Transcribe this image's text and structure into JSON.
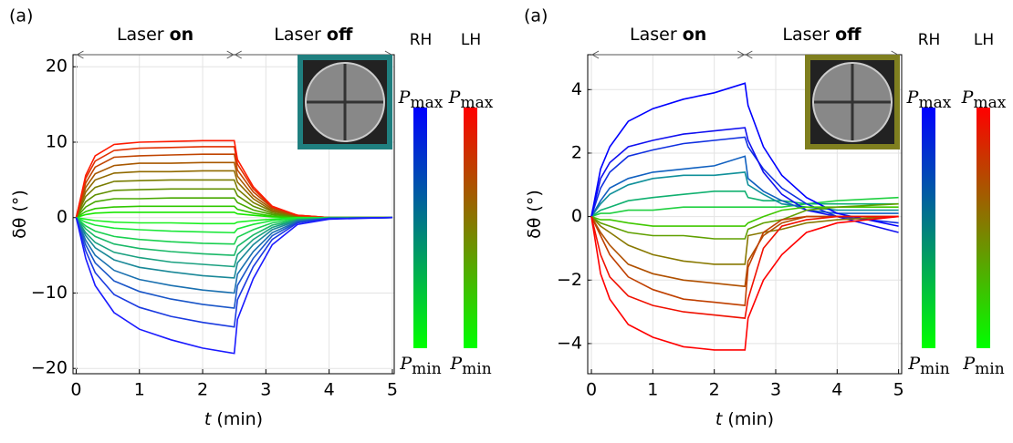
{
  "chart_data": [
    {
      "type": "line",
      "panel_label": "(a)",
      "annotations": [
        {
          "text": "Laser",
          "bold": "on"
        },
        {
          "text": "Laser",
          "bold": "off"
        }
      ],
      "y_label": "δθ (°)",
      "x_label_var": "t",
      "x_label_unit": "(min)",
      "xlim": [
        -0.05,
        5.03
      ],
      "ylim": [
        -20.7,
        21.6
      ],
      "xticks": [
        0,
        1,
        2,
        3,
        4,
        5
      ],
      "yticks": [
        {
          "value": -20,
          "label": "−20"
        },
        {
          "value": -10,
          "label": "−10"
        },
        0,
        10,
        20
      ],
      "grid": true,
      "inset_border": "#1f7f7f",
      "colorbars": [
        {
          "label": "RH",
          "top_color": "#0000ff",
          "bottom_color": "#00ff00"
        },
        {
          "label": "LH",
          "top_color": "#ff0000",
          "bottom_color": "#00ff00"
        }
      ],
      "p_symbol": "P",
      "max_sub": "max",
      "min_sub": "min",
      "x": [
        0,
        0.15,
        0.3,
        0.6,
        1,
        1.5,
        2,
        2.5,
        2.55,
        2.8,
        3.1,
        3.5,
        4,
        5
      ],
      "series": [
        {
          "color": "#18e800",
          "values": [
            0,
            0.4,
            0.6,
            0.7,
            0.7,
            0.7,
            0.7,
            0.7,
            0.5,
            0.3,
            0.1,
            0,
            0,
            0
          ]
        },
        {
          "color": "#30c800",
          "values": [
            0,
            0.8,
            1.2,
            1.4,
            1.5,
            1.5,
            1.5,
            1.5,
            1.1,
            0.6,
            0.2,
            0,
            0,
            0
          ]
        },
        {
          "color": "#48a800",
          "values": [
            0,
            1.4,
            2.1,
            2.5,
            2.5,
            2.6,
            2.6,
            2.6,
            2,
            1,
            0.4,
            0.1,
            0,
            0
          ]
        },
        {
          "color": "#609000",
          "values": [
            0,
            2.1,
            3,
            3.6,
            3.7,
            3.8,
            3.8,
            3.8,
            2.9,
            1.5,
            0.6,
            0.1,
            0,
            0
          ]
        },
        {
          "color": "#787c00",
          "values": [
            0,
            2.8,
            4,
            4.8,
            4.9,
            5,
            5,
            5,
            3.8,
            2,
            0.8,
            0.2,
            0,
            0
          ]
        },
        {
          "color": "#906a00",
          "values": [
            0,
            3.4,
            5,
            5.9,
            6.1,
            6.1,
            6.2,
            6.2,
            4.7,
            2.5,
            0.9,
            0.2,
            0,
            0
          ]
        },
        {
          "color": "#a85800",
          "values": [
            0,
            4,
            5.8,
            6.9,
            7.2,
            7.2,
            7.3,
            7.3,
            5.5,
            2.9,
            1.1,
            0.2,
            0,
            0
          ]
        },
        {
          "color": "#c04400",
          "values": [
            0,
            4.6,
            6.7,
            8,
            8.2,
            8.3,
            8.4,
            8.4,
            6.3,
            3.4,
            1.3,
            0.3,
            0,
            0
          ]
        },
        {
          "color": "#e03000",
          "values": [
            0,
            5.2,
            7.5,
            8.9,
            9.2,
            9.3,
            9.4,
            9.4,
            7.1,
            3.8,
            1.4,
            0.3,
            0,
            0
          ]
        },
        {
          "color": "#ff1a00",
          "values": [
            0,
            5.6,
            8.2,
            9.7,
            10,
            10.1,
            10.2,
            10.2,
            7.7,
            4.1,
            1.5,
            0.3,
            0,
            0
          ]
        },
        {
          "color": "#1af020",
          "values": [
            0,
            -0.2,
            -0.4,
            -0.6,
            -0.7,
            -0.7,
            -0.8,
            -0.8,
            -0.6,
            -0.4,
            -0.2,
            0,
            0,
            0
          ]
        },
        {
          "color": "#1ae838",
          "values": [
            0,
            -0.6,
            -1,
            -1.4,
            -1.6,
            -1.8,
            -1.9,
            -2,
            -1.5,
            -0.9,
            -0.4,
            -0.1,
            0,
            0
          ]
        },
        {
          "color": "#1ad050",
          "values": [
            0,
            -1.1,
            -1.8,
            -2.5,
            -2.9,
            -3.2,
            -3.4,
            -3.5,
            -2.6,
            -1.6,
            -0.7,
            -0.2,
            0,
            0
          ]
        },
        {
          "color": "#1ab868",
          "values": [
            0,
            -1.5,
            -2.5,
            -3.5,
            -4.1,
            -4.5,
            -4.8,
            -5,
            -3.8,
            -2.3,
            -1,
            -0.3,
            -0.1,
            0
          ]
        },
        {
          "color": "#1aa080",
          "values": [
            0,
            -2,
            -3.3,
            -4.6,
            -5.3,
            -5.9,
            -6.2,
            -6.5,
            -4.9,
            -2.9,
            -1.3,
            -0.3,
            -0.1,
            0
          ]
        },
        {
          "color": "#1a8898",
          "values": [
            0,
            -2.4,
            -4,
            -5.6,
            -6.6,
            -7.2,
            -7.7,
            -8,
            -6,
            -3.6,
            -1.6,
            -0.4,
            -0.1,
            0
          ]
        },
        {
          "color": "#1a70b0",
          "values": [
            0,
            -3,
            -5,
            -7,
            -8.2,
            -9,
            -9.6,
            -10,
            -7.5,
            -4.5,
            -2,
            -0.5,
            -0.1,
            0
          ]
        },
        {
          "color": "#1a56c8",
          "values": [
            0,
            -3.6,
            -6,
            -8.4,
            -9.8,
            -10.8,
            -11.5,
            -12,
            -9,
            -5.4,
            -2.4,
            -0.6,
            -0.1,
            0
          ]
        },
        {
          "color": "#1a3ae0",
          "values": [
            0,
            -4.4,
            -7.3,
            -10.2,
            -11.9,
            -13.1,
            -13.9,
            -14.5,
            -10.9,
            -6.5,
            -2.9,
            -0.7,
            -0.1,
            0
          ]
        },
        {
          "color": "#1a1aff",
          "values": [
            0,
            -5.4,
            -9,
            -12.6,
            -14.8,
            -16.2,
            -17.3,
            -18,
            -13.5,
            -8.1,
            -3.6,
            -0.9,
            -0.2,
            0
          ]
        }
      ]
    },
    {
      "type": "line",
      "panel_label": "(a)",
      "annotations": [
        {
          "text": "Laser",
          "bold": "on"
        },
        {
          "text": "Laser",
          "bold": "off"
        }
      ],
      "y_label": "δθ (°)",
      "x_label_var": "t",
      "x_label_unit": "(min)",
      "xlim": [
        -0.06,
        5.05
      ],
      "ylim": [
        -4.95,
        5.1
      ],
      "xticks": [
        0,
        1,
        2,
        3,
        4,
        5
      ],
      "yticks": [
        {
          "value": -4,
          "label": "−4"
        },
        {
          "value": -2,
          "label": "−2"
        },
        0,
        2,
        4
      ],
      "grid": true,
      "inset_border": "#7f7f1f",
      "colorbars": [
        {
          "label": "RH",
          "top_color": "#0000ff",
          "bottom_color": "#00ff00"
        },
        {
          "label": "LH",
          "top_color": "#ff0000",
          "bottom_color": "#00ff00"
        }
      ],
      "p_symbol": "P",
      "max_sub": "max",
      "min_sub": "min",
      "x": [
        0,
        0.15,
        0.3,
        0.6,
        1,
        1.5,
        2,
        2.5,
        2.55,
        2.8,
        3.1,
        3.5,
        4,
        5
      ],
      "series": [
        {
          "color": "#20d040",
          "values": [
            0,
            0.1,
            0.1,
            0.2,
            0.2,
            0.3,
            0.3,
            0.3,
            0.3,
            0.3,
            0.3,
            0.4,
            0.5,
            0.6
          ]
        },
        {
          "color": "#10b070",
          "values": [
            0,
            0.2,
            0.3,
            0.5,
            0.6,
            0.7,
            0.8,
            0.8,
            0.6,
            0.5,
            0.5,
            0.4,
            0.4,
            0.4
          ]
        },
        {
          "color": "#10909a",
          "values": [
            0,
            0.4,
            0.7,
            1,
            1.2,
            1.3,
            1.3,
            1.4,
            1,
            0.7,
            0.4,
            0.3,
            0.2,
            0.2
          ]
        },
        {
          "color": "#1060c0",
          "values": [
            0,
            0.5,
            0.9,
            1.2,
            1.4,
            1.5,
            1.6,
            1.9,
            1.2,
            0.8,
            0.5,
            0.2,
            0.1,
            0.1
          ]
        },
        {
          "color": "#1030e0",
          "values": [
            0,
            0.9,
            1.4,
            1.9,
            2.1,
            2.3,
            2.4,
            2.5,
            2.2,
            1.5,
            0.9,
            0.4,
            0,
            -0.2
          ]
        },
        {
          "color": "#1010f0",
          "values": [
            0,
            1.2,
            1.7,
            2.2,
            2.4,
            2.6,
            2.7,
            2.8,
            2.4,
            1.4,
            0.7,
            0.2,
            0,
            -0.5
          ]
        },
        {
          "color": "#0000ff",
          "values": [
            0,
            1.5,
            2.2,
            3,
            3.4,
            3.7,
            3.9,
            4.2,
            3.5,
            2.2,
            1.3,
            0.6,
            0.1,
            -0.3
          ]
        },
        {
          "color": "#40c800",
          "values": [
            0,
            -0.1,
            -0.1,
            -0.2,
            -0.3,
            -0.3,
            -0.3,
            -0.3,
            -0.2,
            0,
            0.2,
            0.3,
            0.3,
            0.3
          ]
        },
        {
          "color": "#60a000",
          "values": [
            0,
            -0.2,
            -0.3,
            -0.5,
            -0.6,
            -0.6,
            -0.7,
            -0.7,
            -0.4,
            -0.2,
            -0.1,
            0.2,
            0.3,
            0.4
          ]
        },
        {
          "color": "#887800",
          "values": [
            0,
            -0.3,
            -0.5,
            -0.9,
            -1.2,
            -1.4,
            -1.5,
            -1.5,
            -0.6,
            -0.5,
            -0.4,
            -0.2,
            -0.1,
            0
          ]
        },
        {
          "color": "#b05000",
          "values": [
            0,
            -0.5,
            -0.9,
            -1.5,
            -1.8,
            -2,
            -2.1,
            -2.2,
            -1.4,
            -0.6,
            -0.2,
            0,
            0,
            0
          ]
        },
        {
          "color": "#c04000",
          "values": [
            0,
            -0.6,
            -1.2,
            -1.9,
            -2.3,
            -2.6,
            -2.7,
            -2.8,
            -1.6,
            -0.5,
            -0.1,
            0,
            0,
            0
          ]
        },
        {
          "color": "#f01000",
          "values": [
            0,
            -1.2,
            -1.9,
            -2.5,
            -2.8,
            -3,
            -3.1,
            -3.2,
            -2.6,
            -1,
            -0.3,
            -0.1,
            0,
            0
          ]
        },
        {
          "color": "#ff0000",
          "values": [
            0,
            -1.8,
            -2.6,
            -3.4,
            -3.8,
            -4.1,
            -4.2,
            -4.2,
            -3.2,
            -2,
            -1.2,
            -0.5,
            -0.2,
            0
          ]
        }
      ]
    }
  ]
}
